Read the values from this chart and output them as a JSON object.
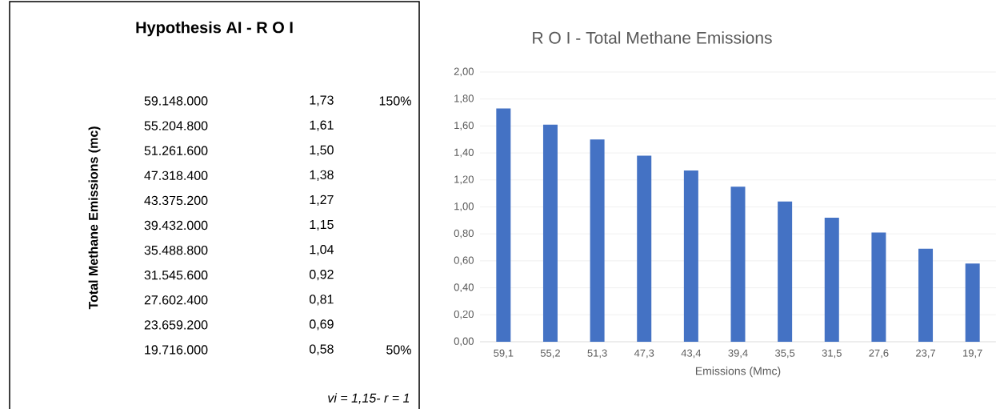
{
  "chart_data": [
    {
      "type": "other",
      "title": "Hypothesis AI - R O I",
      "ylabel": "Total Methane Emissions (mc)",
      "categories": [
        "59.148.000",
        "55.204.800",
        "51.261.600",
        "47.318.400",
        "43.375.200",
        "39.432.000",
        "35.488.800",
        "31.545.600",
        "27.602.400",
        "23.659.200",
        "19.716.000"
      ],
      "values": [
        1.73,
        1.61,
        1.5,
        1.38,
        1.27,
        1.15,
        1.04,
        0.92,
        0.81,
        0.69,
        0.58
      ],
      "value_labels": [
        "1,73",
        "1,61",
        "1,50",
        "1,38",
        "1,27",
        "1,15",
        "1,04",
        "0,92",
        "0,81",
        "0,69",
        "0,58"
      ],
      "annotations": [
        "150%",
        "50%",
        "vi = 1,15- r = 1"
      ]
    },
    {
      "type": "bar",
      "title": "R O I  - Total Methane Emissions",
      "xlabel": "Emissions (Mmc)",
      "categories": [
        "59,1",
        "55,2",
        "51,3",
        "47,3",
        "43,4",
        "39,4",
        "35,5",
        "31,5",
        "27,6",
        "23,7",
        "19,7"
      ],
      "values": [
        1.73,
        1.61,
        1.5,
        1.38,
        1.27,
        1.15,
        1.04,
        0.92,
        0.81,
        0.69,
        0.58
      ],
      "color": "#4472c4",
      "ylim": [
        0,
        2
      ],
      "grid": "y",
      "yticks": [
        {
          "value": 0,
          "label": "0,00"
        },
        {
          "value": 0.2,
          "label": "0,20"
        },
        {
          "value": 0.4,
          "label": "0,40"
        },
        {
          "value": 0.6,
          "label": "0,60"
        },
        {
          "value": 0.8,
          "label": "0,80"
        },
        {
          "value": 1.0,
          "label": "1,00"
        },
        {
          "value": 1.2,
          "label": "1,20"
        },
        {
          "value": 1.4,
          "label": "1,40"
        },
        {
          "value": 1.6,
          "label": "1,60"
        },
        {
          "value": 1.8,
          "label": "1,80"
        },
        {
          "value": 2.0,
          "label": "2,00"
        }
      ]
    }
  ]
}
